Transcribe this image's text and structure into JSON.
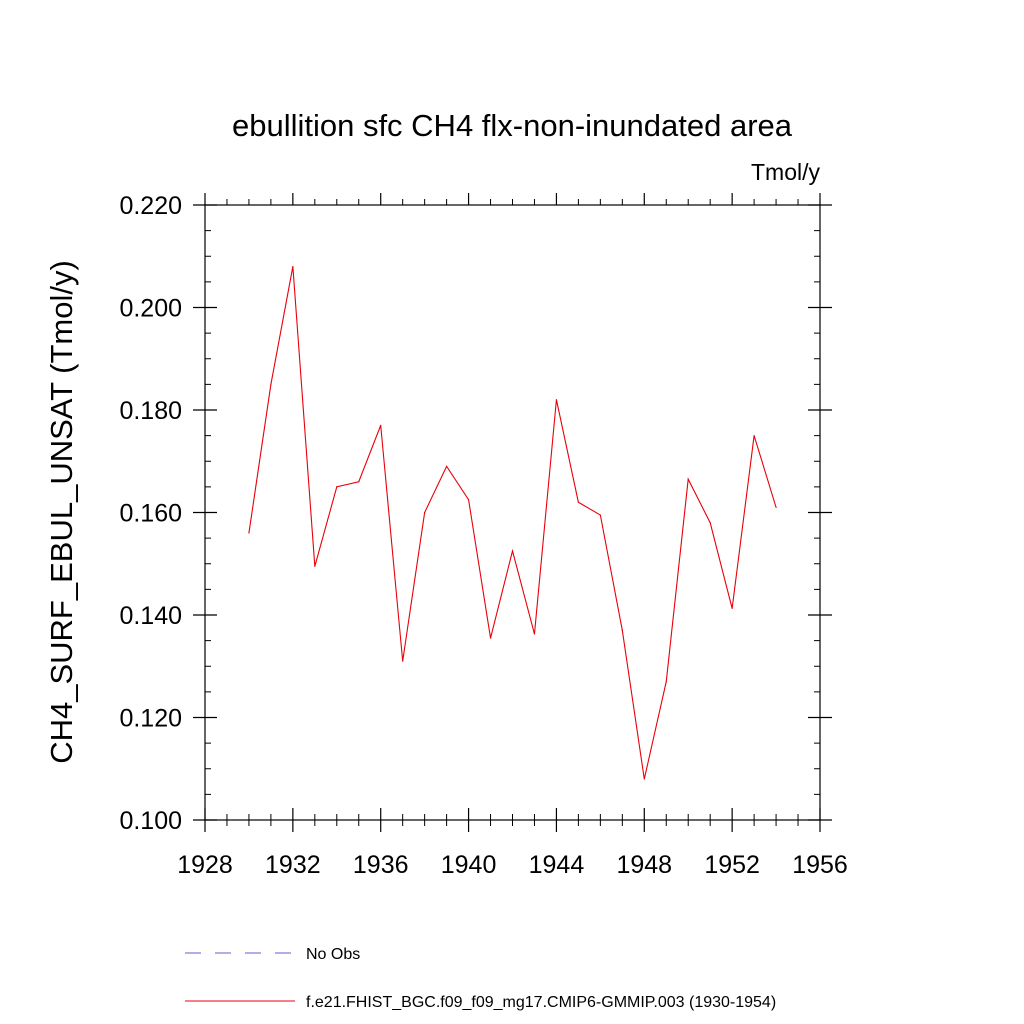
{
  "chart_data": {
    "type": "line",
    "title": "ebullition sfc CH4 flx-non-inundated area",
    "units_label": "Tmol/y",
    "xlabel": "",
    "ylabel": "CH4_SURF_EBUL_UNSAT  (Tmol/y)",
    "xlim": [
      1928,
      1956
    ],
    "ylim": [
      0.1,
      0.22
    ],
    "x_ticks": [
      "1928",
      "1932",
      "1936",
      "1940",
      "1944",
      "1948",
      "1952",
      "1956"
    ],
    "y_ticks": [
      "0.100",
      "0.120",
      "0.140",
      "0.160",
      "0.180",
      "0.200",
      "0.220"
    ],
    "grid": false,
    "legend_position": "bottom",
    "series": [
      {
        "name": "f.e21.FHIST_BGC.f09_f09_mg17.CMIP6-GMMIP.003 (1930-1954)",
        "color": "#e8000b",
        "style": "solid",
        "x": [
          1930,
          1931,
          1932,
          1933,
          1934,
          1935,
          1936,
          1937,
          1938,
          1939,
          1940,
          1941,
          1942,
          1943,
          1944,
          1945,
          1946,
          1947,
          1948,
          1949,
          1950,
          1951,
          1952,
          1953,
          1954
        ],
        "values": [
          0.156,
          0.185,
          0.208,
          0.1495,
          0.165,
          0.166,
          0.177,
          0.131,
          0.16,
          0.169,
          0.1625,
          0.1355,
          0.1525,
          0.1363,
          0.182,
          0.162,
          0.1595,
          0.137,
          0.108,
          0.127,
          0.1665,
          0.158,
          0.1413,
          0.175,
          0.161
        ]
      },
      {
        "name": "No Obs",
        "color": "#6a5acd",
        "style": "dashed",
        "x": [],
        "values": []
      }
    ]
  }
}
